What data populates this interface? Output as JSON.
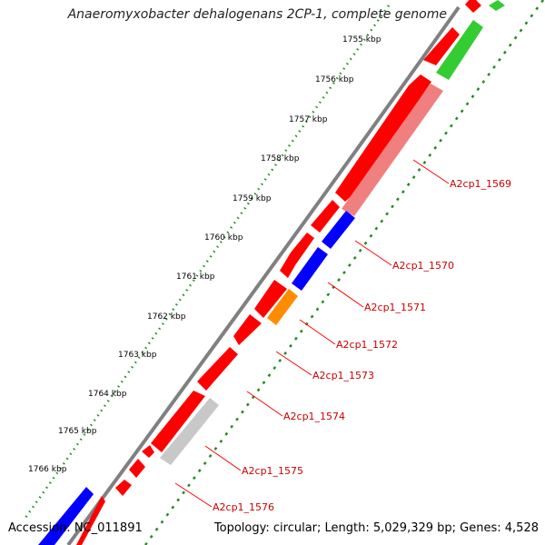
{
  "title": "Anaeromyxobacter dehalogenans 2CP-1, complete genome",
  "ticks": [
    "1755 kbp",
    "1756 kbp",
    "1757 kbp",
    "1758 kbp",
    "1759 kbp",
    "1760 kbp",
    "1761 kbp",
    "1762 kbp",
    "1763 kbp",
    "1764 kbp",
    "1765 kbp",
    "1766 kbp"
  ],
  "gene_labels": [
    "A2cp1_1569",
    "A2cp1_1570",
    "A2cp1_1571",
    "A2cp1_1572",
    "A2cp1_1573",
    "A2cp1_1574",
    "A2cp1_1575",
    "A2cp1_1576"
  ],
  "footer": {
    "accession": "Accession: NC_011891",
    "summary": "Topology: circular; Length: 5,029,329 bp; Genes: 4,528"
  },
  "colors": {
    "backbone": "#808080",
    "forward_gene": "#ff0000",
    "reverse_red": "#f08080",
    "reverse_blue": "#0000ff",
    "reverse_orange": "#ff8c00",
    "reverse_gray": "#c8c8c8",
    "reverse_green": "#33cc33",
    "tick_dots": "#228b22",
    "label_line": "#ff0000",
    "label_text": "#cc0000"
  }
}
